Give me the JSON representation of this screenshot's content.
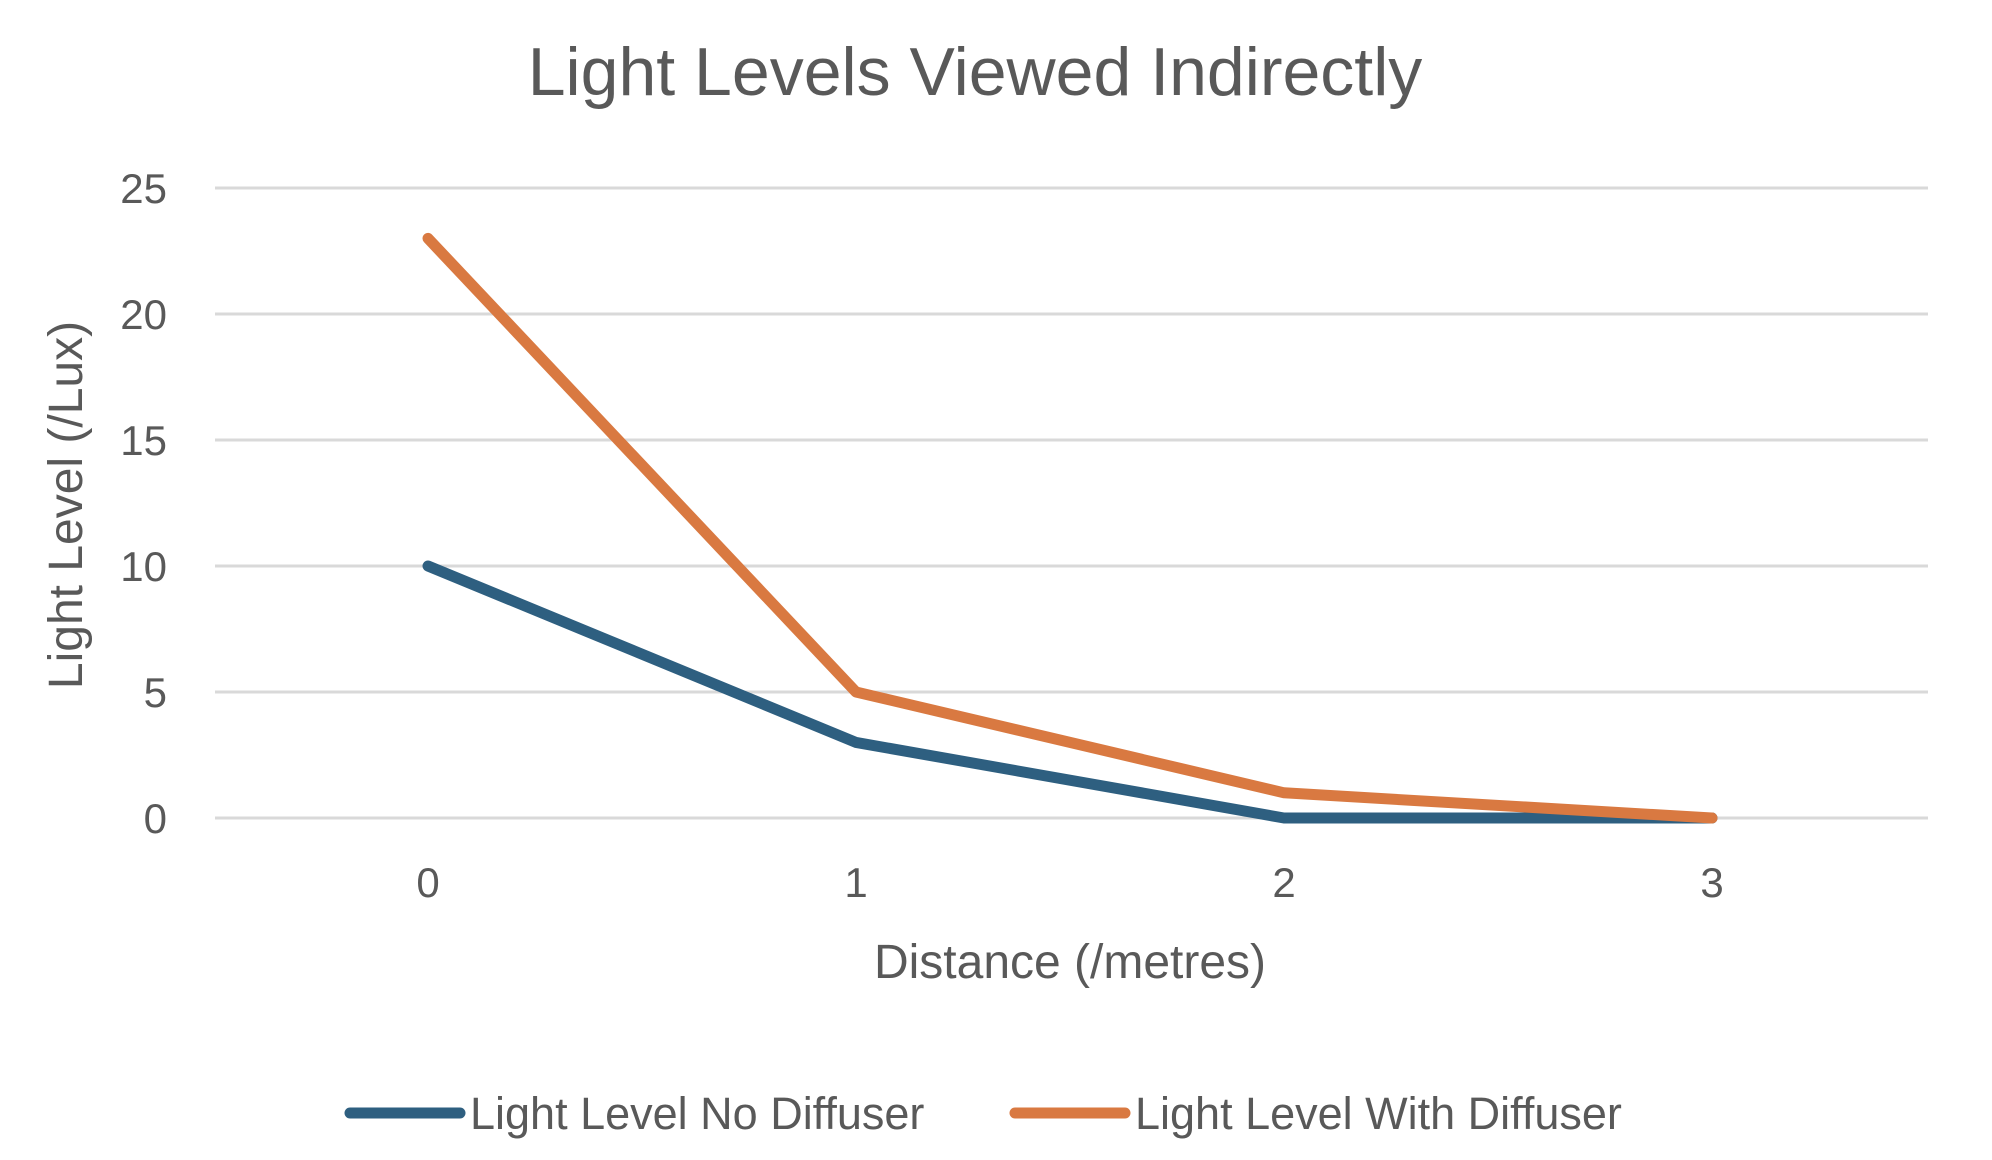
{
  "chart_data": {
    "type": "line",
    "title": "Light Levels Viewed Indirectly",
    "xlabel": "Distance (/metres)",
    "ylabel": "Light Level (/Lux)",
    "x": [
      0,
      1,
      2,
      3
    ],
    "x_tick_labels": [
      "0",
      "1",
      "2",
      "3"
    ],
    "y_tick_labels": [
      "0",
      "5",
      "10",
      "15",
      "20",
      "25"
    ],
    "ylim": [
      0,
      25
    ],
    "grid": true,
    "legend_position": "bottom",
    "series": [
      {
        "name": "Light Level No Diffuser",
        "values": [
          10,
          3,
          0,
          0
        ],
        "color": "#2e5f80"
      },
      {
        "name": "Light Level With Diffuser",
        "values": [
          23,
          5,
          1,
          0
        ],
        "color": "#d97941"
      }
    ]
  }
}
